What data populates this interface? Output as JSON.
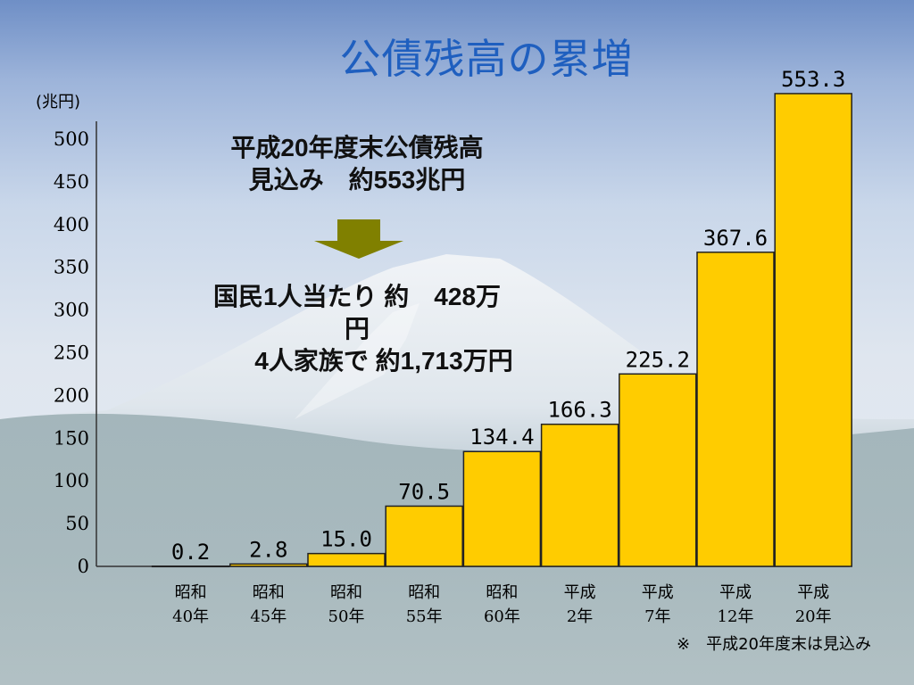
{
  "title": "公債残高の累増",
  "unit_label": "(兆円)",
  "annotation": {
    "line1": "平成20年度末公債残高",
    "line2": "見込み　約553兆円",
    "line3": "国民1人当たり 約　428万円",
    "line4": "4人家族で 約1,713万円"
  },
  "footnote": "※　平成20年度末は見込み",
  "colors": {
    "bar": "#ffcc00",
    "bar_stroke": "#222222",
    "title": "#1f5fbf",
    "arrow": "#808000"
  },
  "chart_data": {
    "type": "bar",
    "title": "公債残高の累増",
    "ylabel": "(兆円)",
    "xlabel": "",
    "ylim": [
      0,
      500
    ],
    "yticks": [
      0,
      50,
      100,
      150,
      200,
      250,
      300,
      350,
      400,
      450,
      500
    ],
    "grid": false,
    "categories": [
      [
        "昭和",
        "40年"
      ],
      [
        "昭和",
        "45年"
      ],
      [
        "昭和",
        "50年"
      ],
      [
        "昭和",
        "55年"
      ],
      [
        "昭和",
        "60年"
      ],
      [
        "平成",
        "2年"
      ],
      [
        "平成",
        "7年"
      ],
      [
        "平成",
        "12年"
      ],
      [
        "平成",
        "20年"
      ]
    ],
    "values": [
      0.2,
      2.8,
      15.0,
      70.5,
      134.4,
      166.3,
      225.2,
      367.6,
      553.3
    ],
    "data_labels": [
      "0.2",
      "2.8",
      "15.0",
      "70.5",
      "134.4",
      "166.3",
      "225.2",
      "367.6",
      "553.3"
    ]
  }
}
